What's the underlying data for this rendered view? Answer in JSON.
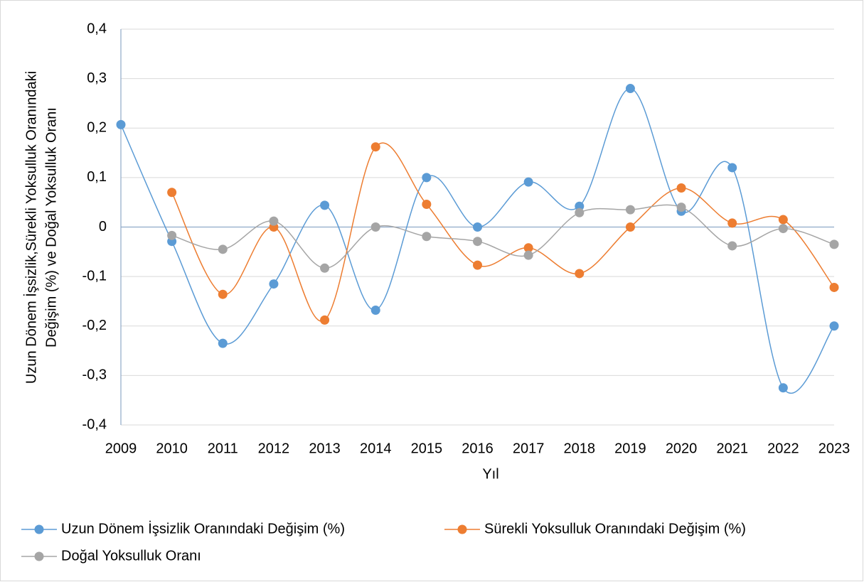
{
  "chart_data": {
    "type": "line",
    "ylabel": [
      "Uzun Dönem İşsizlik,Sürekli Yoksulluk Oranındaki",
      "Değişim (%) ve Doğal Yoksulluk Oranı"
    ],
    "xlabel": "Yıl",
    "categories": [
      "2009",
      "2010",
      "2011",
      "2012",
      "2013",
      "2014",
      "2015",
      "2016",
      "2017",
      "2018",
      "2019",
      "2020",
      "2021",
      "2022",
      "2023"
    ],
    "series": [
      {
        "name": "Uzun Dönem İşsizlik Oranındaki Değişim (%)",
        "color": "#5b9bd5",
        "values": [
          0.207,
          -0.029,
          -0.235,
          -0.115,
          0.044,
          -0.168,
          0.1,
          0,
          0.091,
          0.042,
          0.28,
          0.032,
          0.12,
          -0.325,
          -0.2
        ]
      },
      {
        "name": "Sürekli Yoksulluk Oranındaki Değişim (%)",
        "color": "#ed7d31",
        "values": [
          null,
          0.07,
          -0.136,
          0,
          -0.188,
          0.162,
          0.046,
          -0.077,
          -0.042,
          -0.094,
          0,
          0.079,
          0.008,
          0.015,
          -0.122
        ]
      },
      {
        "name": "Doğal Yoksulluk Oranı",
        "color": "#a5a5a5",
        "values": [
          null,
          -0.017,
          -0.045,
          0.012,
          -0.083,
          0,
          -0.019,
          -0.029,
          -0.057,
          0.029,
          0.035,
          0.04,
          -0.038,
          -0.003,
          -0.035
        ]
      }
    ],
    "ylim": [
      -0.4,
      0.4
    ],
    "yticks": [
      {
        "value": -0.4,
        "label": "-0,4"
      },
      {
        "value": -0.3,
        "label": "-0,3"
      },
      {
        "value": -0.2,
        "label": "-0,2"
      },
      {
        "value": -0.1,
        "label": "-0,1"
      },
      0,
      {
        "value": 0.1,
        "label": "0,1"
      },
      {
        "value": 0.2,
        "label": "0,2"
      },
      {
        "value": 0.3,
        "label": "0,3"
      },
      {
        "value": 0.4,
        "label": "0,4"
      }
    ],
    "grid": true,
    "smooth": true,
    "legend": "bottom"
  }
}
